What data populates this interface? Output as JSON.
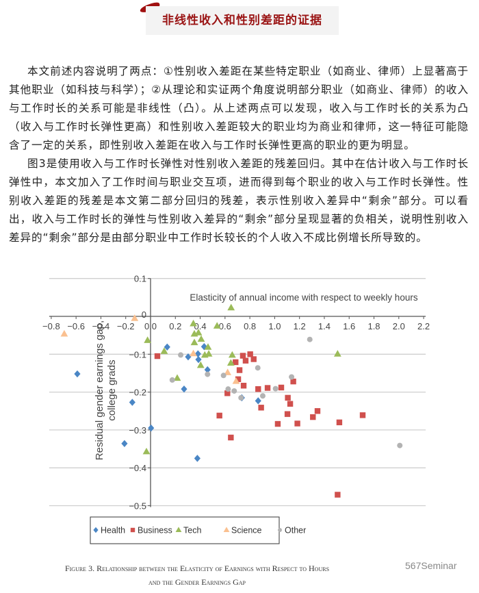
{
  "header": {
    "title": "非线性收入和性别差距的证据"
  },
  "paragraphs": [
    "本文前述内容说明了两点：①性别收入差距在某些特定职业（如商业、律师）上显著高于其他职业（如科技与科学）；②从理论和实证两个角度说明部分职业（如商业、律师）的收入与工作时长的关系可能是非线性（凸）。从上述两点可以发现，收入与工作时长的关系为凸（收入与工作时长弹性更高）和性别收入差距较大的职业均为商业和律师，这一特征可能隐含了一定的关系，即性别收入差距在收入与工作时长弹性更高的职业的更为明显。",
    "图3是使用收入与工作时长弹性对性别收入差距的残差回归。其中在估计收入与工作时长弹性中，本文加入了工作时间与职业交互项，进而得到每个职业的收入与工作时长弹性。性别收入差距的残差是本文第二部分回归的残差，表示性别收入差异中“剩余”部分。可以看出，收入与工作时长的弹性与性别收入差异的“剩余”部分呈现显著的负相关，说明性别收入差异的“剩余”部分是由部分职业中工作时长较长的个人收入不成比例增长所导致的。"
  ],
  "chart_data": {
    "type": "scatter",
    "annotation": "Elasticity of annual income with respect to weekly hours",
    "ylabel_lines": [
      "Residual gender earnings gap,",
      "college grads"
    ],
    "xlim": [
      -0.8,
      2.2
    ],
    "ylim": [
      -0.5,
      0.1
    ],
    "x_ticks": [
      "−0.8",
      "−0.6",
      "−0.4",
      "−0.2",
      "0.0",
      "0.2",
      "0.4",
      "0.6",
      "0.8",
      "1.0",
      "1.2",
      "1.4",
      "1.6",
      "1.8",
      "2.0",
      "2.2"
    ],
    "y_ticks": [
      "0.1",
      "0",
      "−0.1",
      "−0.2",
      "−0.3",
      "−0.4",
      "−0.5"
    ],
    "grid": true,
    "legend_position": "bottom",
    "series": [
      {
        "name": "Health",
        "marker": "diamond",
        "color": "#4a86c5",
        "points": [
          [
            -0.59,
            -0.152
          ],
          [
            -0.147,
            -0.227
          ],
          [
            0.004,
            -0.295
          ],
          [
            -0.21,
            -0.336
          ],
          [
            0.377,
            -0.375
          ],
          [
            0.134,
            -0.081
          ],
          [
            0.27,
            -0.192
          ],
          [
            0.303,
            -0.107
          ],
          [
            0.382,
            -0.099
          ],
          [
            0.386,
            -0.114
          ],
          [
            0.432,
            -0.08
          ],
          [
            0.459,
            -0.141
          ],
          [
            0.735,
            -0.215
          ],
          [
            0.867,
            -0.223
          ]
        ]
      },
      {
        "name": "Business",
        "marker": "square",
        "color": "#d0504d",
        "points": [
          [
            0.055,
            -0.105
          ],
          [
            0.555,
            -0.262
          ],
          [
            0.647,
            -0.32
          ],
          [
            0.619,
            -0.203
          ],
          [
            0.685,
            -0.121
          ],
          [
            0.717,
            -0.142
          ],
          [
            0.706,
            -0.166
          ],
          [
            0.744,
            -0.104
          ],
          [
            0.766,
            -0.117
          ],
          [
            0.75,
            -0.183
          ],
          [
            0.803,
            -0.1
          ],
          [
            0.831,
            -0.113
          ],
          [
            0.867,
            -0.192
          ],
          [
            0.891,
            -0.241
          ],
          [
            0.943,
            -0.189
          ],
          [
            1.025,
            -0.284
          ],
          [
            1.053,
            -0.188
          ],
          [
            1.106,
            -0.215
          ],
          [
            1.125,
            -0.231
          ],
          [
            1.103,
            -0.258
          ],
          [
            1.15,
            -0.172
          ],
          [
            1.183,
            -0.283
          ],
          [
            1.308,
            -0.266
          ],
          [
            1.345,
            -0.25
          ],
          [
            1.521,
            -0.28
          ],
          [
            1.709,
            -0.261
          ],
          [
            1.507,
            -0.471
          ]
        ]
      },
      {
        "name": "Tech",
        "marker": "triangle",
        "color": "#9bbb59",
        "points": [
          [
            0.649,
            0.023
          ],
          [
            -0.024,
            -0.063
          ],
          [
            0.11,
            -0.092
          ],
          [
            0.215,
            -0.163
          ],
          [
            -0.033,
            -0.357
          ],
          [
            0.345,
            -0.019
          ],
          [
            0.353,
            -0.046
          ],
          [
            0.386,
            -0.043
          ],
          [
            0.408,
            -0.06
          ],
          [
            0.353,
            -0.069
          ],
          [
            0.463,
            -0.081
          ],
          [
            0.437,
            -0.102
          ],
          [
            0.469,
            -0.099
          ],
          [
            0.404,
            -0.129
          ],
          [
            0.536,
            -0.025
          ],
          [
            0.658,
            -0.102
          ],
          [
            0.647,
            -0.123
          ],
          [
            1.507,
            -0.099
          ]
        ]
      },
      {
        "name": "Science",
        "marker": "triangle",
        "color": "#fac090",
        "points": [
          [
            -0.695,
            -0.046
          ],
          [
            -0.128,
            -0.005
          ],
          [
            0.345,
            -0.098
          ],
          [
            0.621,
            -0.148
          ],
          [
            0.689,
            -0.171
          ]
        ]
      },
      {
        "name": "Other",
        "marker": "circle",
        "color": "#b3b3b3",
        "points": [
          [
            0.243,
            -0.102
          ],
          [
            0.175,
            -0.168
          ],
          [
            0.459,
            -0.153
          ],
          [
            0.588,
            -0.156
          ],
          [
            0.625,
            -0.192
          ],
          [
            0.674,
            -0.197
          ],
          [
            0.729,
            -0.215
          ],
          [
            1.283,
            -0.061
          ],
          [
            0.864,
            -0.136
          ],
          [
            1.136,
            -0.16
          ],
          [
            0.904,
            -0.21
          ],
          [
            1.007,
            -0.191
          ],
          [
            2.008,
            -0.341
          ]
        ]
      }
    ]
  },
  "caption": {
    "line1": "Figure 3. Relationship between the Elasticity of Earnings with Respect to Hours",
    "line2": "and the Gender Earnings Gap"
  },
  "watermark": "567Seminar"
}
